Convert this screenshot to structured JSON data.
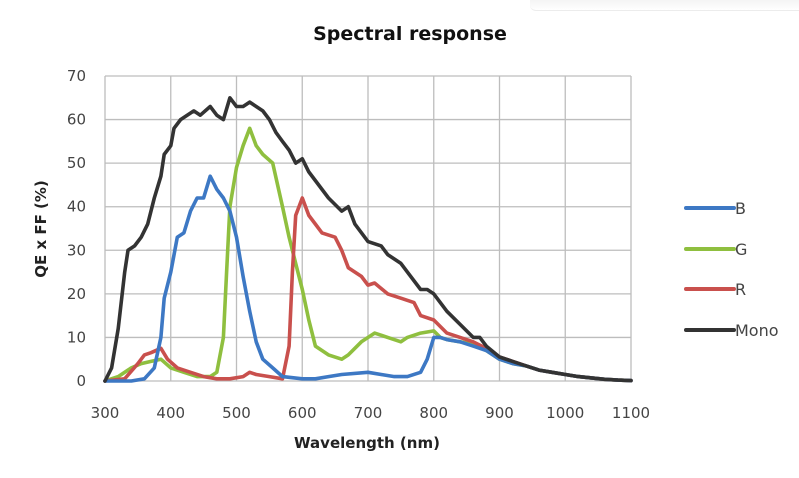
{
  "chart_data": {
    "type": "line",
    "title": "Spectral response",
    "xlabel": "Wavelength (nm)",
    "ylabel": "QE x FF (%)",
    "xlim": [
      300,
      1100
    ],
    "ylim": [
      0,
      70
    ],
    "xticks": [
      300,
      400,
      500,
      600,
      700,
      800,
      900,
      1000,
      1100
    ],
    "yticks": [
      0,
      10,
      20,
      30,
      40,
      50,
      60,
      70
    ],
    "grid": true,
    "legend_position": "right",
    "series": [
      {
        "name": "B",
        "color": "#3d78c4",
        "points": [
          [
            300,
            0
          ],
          [
            340,
            0
          ],
          [
            360,
            0.5
          ],
          [
            375,
            3
          ],
          [
            385,
            10
          ],
          [
            390,
            19
          ],
          [
            400,
            25
          ],
          [
            410,
            33
          ],
          [
            420,
            34
          ],
          [
            430,
            39
          ],
          [
            440,
            42
          ],
          [
            450,
            42
          ],
          [
            460,
            47
          ],
          [
            470,
            44
          ],
          [
            480,
            42
          ],
          [
            490,
            39
          ],
          [
            500,
            33
          ],
          [
            510,
            24
          ],
          [
            520,
            16
          ],
          [
            530,
            9
          ],
          [
            540,
            5
          ],
          [
            555,
            3
          ],
          [
            570,
            1
          ],
          [
            600,
            0.5
          ],
          [
            620,
            0.5
          ],
          [
            640,
            1
          ],
          [
            660,
            1.5
          ],
          [
            700,
            2
          ],
          [
            720,
            1.5
          ],
          [
            740,
            1
          ],
          [
            760,
            1
          ],
          [
            780,
            2
          ],
          [
            790,
            5
          ],
          [
            800,
            10
          ],
          [
            810,
            10
          ],
          [
            820,
            9.5
          ],
          [
            840,
            9
          ],
          [
            860,
            8
          ],
          [
            880,
            7
          ],
          [
            900,
            5
          ],
          [
            920,
            4
          ],
          [
            940,
            3.5
          ],
          [
            960,
            2.5
          ],
          [
            980,
            2
          ],
          [
            1000,
            1.5
          ],
          [
            1020,
            1
          ],
          [
            1040,
            0.7
          ],
          [
            1060,
            0.4
          ],
          [
            1080,
            0.2
          ],
          [
            1100,
            0.1
          ]
        ]
      },
      {
        "name": "G",
        "color": "#8fbf3f",
        "points": [
          [
            300,
            0
          ],
          [
            320,
            1
          ],
          [
            340,
            3
          ],
          [
            355,
            4
          ],
          [
            370,
            4.5
          ],
          [
            385,
            5
          ],
          [
            400,
            3
          ],
          [
            420,
            2
          ],
          [
            440,
            1
          ],
          [
            460,
            1
          ],
          [
            470,
            2
          ],
          [
            480,
            10
          ],
          [
            485,
            25
          ],
          [
            490,
            40
          ],
          [
            500,
            49
          ],
          [
            510,
            54
          ],
          [
            520,
            58
          ],
          [
            530,
            54
          ],
          [
            540,
            52
          ],
          [
            555,
            50
          ],
          [
            570,
            40
          ],
          [
            580,
            33
          ],
          [
            590,
            27
          ],
          [
            600,
            21
          ],
          [
            610,
            14
          ],
          [
            620,
            8
          ],
          [
            640,
            6
          ],
          [
            660,
            5
          ],
          [
            670,
            6
          ],
          [
            690,
            9
          ],
          [
            710,
            11
          ],
          [
            730,
            10
          ],
          [
            750,
            9
          ],
          [
            760,
            10
          ],
          [
            780,
            11
          ],
          [
            800,
            11.5
          ],
          [
            810,
            10
          ],
          [
            820,
            9.5
          ],
          [
            840,
            9
          ],
          [
            860,
            8.5
          ],
          [
            880,
            7
          ],
          [
            900,
            5
          ],
          [
            920,
            4
          ],
          [
            940,
            3.5
          ],
          [
            960,
            2.5
          ],
          [
            980,
            2
          ],
          [
            1000,
            1.5
          ],
          [
            1020,
            1
          ],
          [
            1040,
            0.7
          ],
          [
            1060,
            0.4
          ],
          [
            1080,
            0.2
          ],
          [
            1100,
            0.1
          ]
        ]
      },
      {
        "name": "R",
        "color": "#c9504d",
        "points": [
          [
            300,
            0
          ],
          [
            330,
            0.5
          ],
          [
            350,
            4
          ],
          [
            360,
            6
          ],
          [
            370,
            6.5
          ],
          [
            385,
            7.5
          ],
          [
            395,
            5
          ],
          [
            410,
            3
          ],
          [
            430,
            2
          ],
          [
            450,
            1
          ],
          [
            470,
            0.5
          ],
          [
            490,
            0.5
          ],
          [
            510,
            1
          ],
          [
            520,
            2
          ],
          [
            530,
            1.5
          ],
          [
            550,
            1
          ],
          [
            570,
            0.5
          ],
          [
            580,
            8
          ],
          [
            585,
            25
          ],
          [
            590,
            38
          ],
          [
            600,
            42
          ],
          [
            610,
            38
          ],
          [
            620,
            36
          ],
          [
            630,
            34
          ],
          [
            650,
            33
          ],
          [
            660,
            30
          ],
          [
            670,
            26
          ],
          [
            690,
            24
          ],
          [
            700,
            22
          ],
          [
            710,
            22.5
          ],
          [
            730,
            20
          ],
          [
            750,
            19
          ],
          [
            770,
            18
          ],
          [
            780,
            15
          ],
          [
            800,
            14
          ],
          [
            820,
            11
          ],
          [
            840,
            10
          ],
          [
            860,
            9
          ],
          [
            880,
            7.5
          ],
          [
            900,
            5.5
          ],
          [
            920,
            4.5
          ],
          [
            940,
            3.5
          ],
          [
            960,
            2.5
          ],
          [
            980,
            2
          ],
          [
            1000,
            1.5
          ],
          [
            1020,
            1
          ],
          [
            1040,
            0.7
          ],
          [
            1060,
            0.4
          ],
          [
            1080,
            0.2
          ],
          [
            1100,
            0.1
          ]
        ]
      },
      {
        "name": "Mono",
        "color": "#333333",
        "points": [
          [
            300,
            0
          ],
          [
            310,
            3
          ],
          [
            320,
            12
          ],
          [
            330,
            25
          ],
          [
            335,
            30
          ],
          [
            345,
            31
          ],
          [
            355,
            33
          ],
          [
            365,
            36
          ],
          [
            375,
            42
          ],
          [
            385,
            47
          ],
          [
            390,
            52
          ],
          [
            400,
            54
          ],
          [
            405,
            58
          ],
          [
            415,
            60
          ],
          [
            425,
            61
          ],
          [
            435,
            62
          ],
          [
            445,
            61
          ],
          [
            460,
            63
          ],
          [
            470,
            61
          ],
          [
            480,
            60
          ],
          [
            490,
            65
          ],
          [
            500,
            63
          ],
          [
            510,
            63
          ],
          [
            520,
            64
          ],
          [
            530,
            63
          ],
          [
            540,
            62
          ],
          [
            550,
            60
          ],
          [
            560,
            57
          ],
          [
            570,
            55
          ],
          [
            580,
            53
          ],
          [
            590,
            50
          ],
          [
            600,
            51
          ],
          [
            610,
            48
          ],
          [
            620,
            46
          ],
          [
            640,
            42
          ],
          [
            660,
            39
          ],
          [
            670,
            40
          ],
          [
            680,
            36
          ],
          [
            700,
            32
          ],
          [
            720,
            31
          ],
          [
            730,
            29
          ],
          [
            750,
            27
          ],
          [
            760,
            25
          ],
          [
            780,
            21
          ],
          [
            790,
            21
          ],
          [
            800,
            20
          ],
          [
            820,
            16
          ],
          [
            840,
            13
          ],
          [
            860,
            10
          ],
          [
            870,
            10
          ],
          [
            880,
            8
          ],
          [
            900,
            5.5
          ],
          [
            920,
            4.5
          ],
          [
            940,
            3.5
          ],
          [
            960,
            2.5
          ],
          [
            980,
            2
          ],
          [
            1000,
            1.5
          ],
          [
            1020,
            1
          ],
          [
            1040,
            0.7
          ],
          [
            1060,
            0.4
          ],
          [
            1080,
            0.2
          ],
          [
            1100,
            0.1
          ]
        ]
      }
    ]
  }
}
